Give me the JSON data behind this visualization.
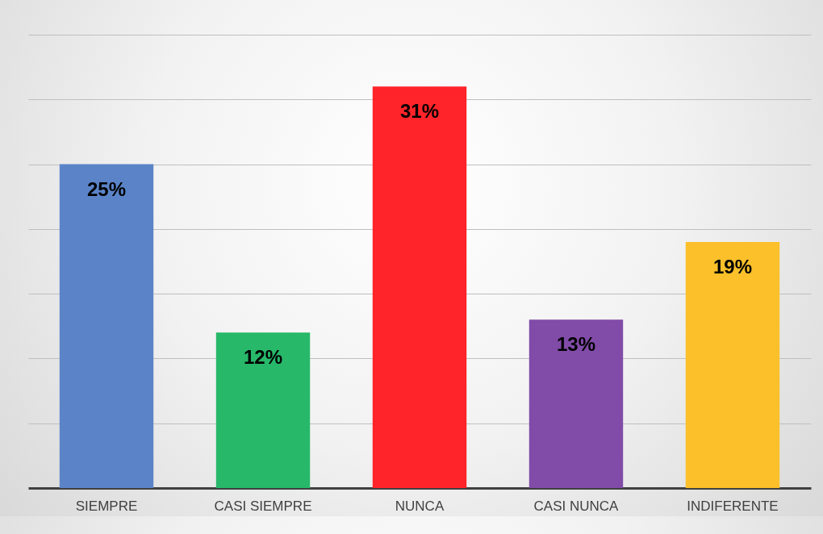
{
  "chart_data": {
    "type": "bar",
    "categories": [
      "SIEMPRE",
      "CASI SIEMPRE",
      "NUNCA",
      "CASI NUNCA",
      "INDIFERENTE"
    ],
    "values": [
      25,
      12,
      31,
      13,
      19
    ],
    "colors": [
      "#5b84c8",
      "#27b86a",
      "#ff2429",
      "#814ba8",
      "#fbc02a"
    ],
    "value_labels": [
      "25%",
      "12%",
      "31%",
      "13%",
      "19%"
    ],
    "ylim": [
      0,
      35
    ],
    "yticks": [
      {
        "value": 0,
        "label": null
      },
      {
        "value": 5,
        "label": null
      },
      {
        "value": 10,
        "label": null
      },
      {
        "value": 15,
        "label": null
      },
      {
        "value": 20,
        "label": null
      },
      {
        "value": 25,
        "label": null
      },
      {
        "value": 30,
        "label": null
      },
      {
        "value": 35,
        "label": null
      }
    ],
    "grid": "y",
    "tick_labels": "x"
  }
}
